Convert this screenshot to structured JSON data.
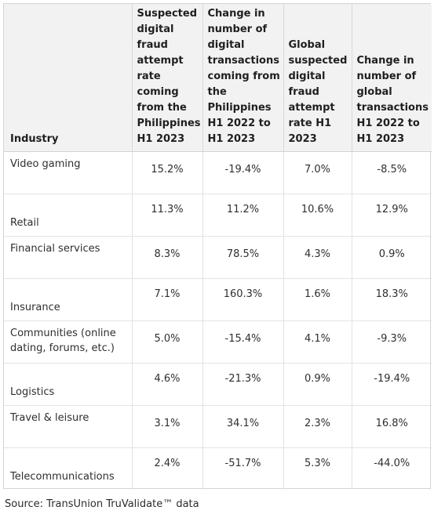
{
  "headers": {
    "industry": "Industry",
    "ph_rate": "Suspected digital fraud attempt rate coming from the Philippines H1 2023",
    "ph_change": "Change in number of digital transactions coming from the Philippines H1 2022 to H1 2023",
    "global_rate": "Global suspected digital fraud attempt rate H1 2023",
    "global_change": "Change in number of global transactions H1 2022 to H1 2023"
  },
  "rows": [
    {
      "industry": "Video gaming",
      "ph_rate": "15.2%",
      "ph_change": "-19.4%",
      "global_rate": "7.0%",
      "global_change": "-8.5%"
    },
    {
      "industry": "Retail",
      "ph_rate": "11.3%",
      "ph_change": "11.2%",
      "global_rate": "10.6%",
      "global_change": "12.9%"
    },
    {
      "industry": "Financial services",
      "ph_rate": "8.3%",
      "ph_change": "78.5%",
      "global_rate": "4.3%",
      "global_change": "0.9%"
    },
    {
      "industry": "Insurance",
      "ph_rate": "7.1%",
      "ph_change": "160.3%",
      "global_rate": "1.6%",
      "global_change": "18.3%"
    },
    {
      "industry": "Communities (online dating, forums, etc.)",
      "ph_rate": "5.0%",
      "ph_change": "-15.4%",
      "global_rate": "4.1%",
      "global_change": "-9.3%"
    },
    {
      "industry": "Logistics",
      "ph_rate": "4.6%",
      "ph_change": "-21.3%",
      "global_rate": "0.9%",
      "global_change": "-19.4%"
    },
    {
      "industry": "Travel & leisure",
      "ph_rate": "3.1%",
      "ph_change": "34.1%",
      "global_rate": "2.3%",
      "global_change": "16.8%"
    },
    {
      "industry": "Telecommunications",
      "ph_rate": "2.4%",
      "ph_change": "-51.7%",
      "global_rate": "5.3%",
      "global_change": "-44.0%"
    }
  ],
  "source": "Source: TransUnion TruValidate™ data"
}
